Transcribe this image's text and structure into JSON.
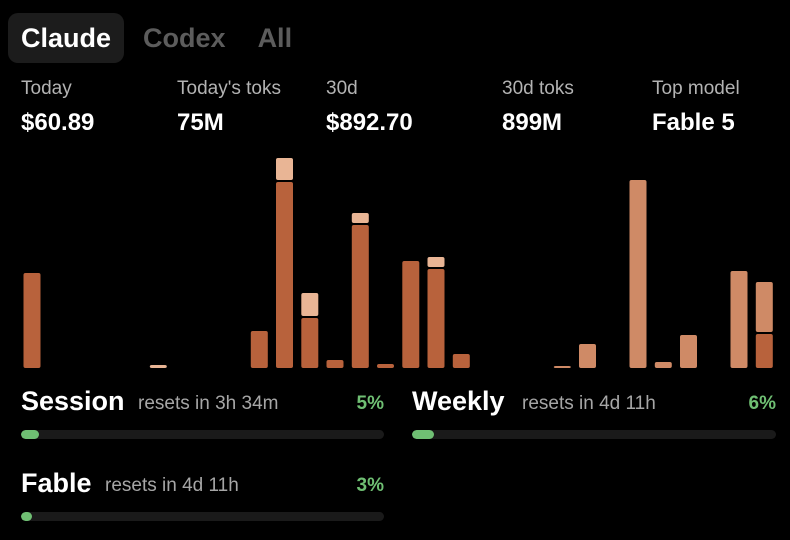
{
  "tabs": [
    {
      "label": "Claude",
      "active": true
    },
    {
      "label": "Codex",
      "active": false
    },
    {
      "label": "All",
      "active": false
    }
  ],
  "stats": [
    {
      "label": "Today",
      "value": "$60.89"
    },
    {
      "label": "Today's toks",
      "value": "75M"
    },
    {
      "label": "30d",
      "value": "$892.70"
    },
    {
      "label": "30d toks",
      "value": "899M"
    },
    {
      "label": "Top model",
      "value": "Fable 5"
    }
  ],
  "colors": {
    "bar_dark": "#b8623c",
    "bar_medium": "#cf8a66",
    "bar_light": "#e9b595",
    "progress": "#6fbf73"
  },
  "chart_data": {
    "type": "bar",
    "stacked": true,
    "x": [
      1,
      2,
      3,
      4,
      5,
      6,
      7,
      8,
      9,
      10,
      11,
      12,
      13,
      14,
      15,
      16,
      17,
      18,
      19,
      20,
      21,
      22,
      23,
      24,
      25,
      26,
      27,
      28,
      29,
      30
    ],
    "series": [
      {
        "color": "#b8623c",
        "values": [
          95,
          0,
          0,
          0,
          0,
          0,
          0,
          0,
          0,
          37,
          186,
          50,
          8,
          143,
          4,
          107,
          99,
          14,
          0,
          0,
          0,
          0,
          0,
          0,
          0,
          0,
          0,
          0,
          0,
          34
        ]
      },
      {
        "color": "#cf8a66",
        "values": [
          0,
          0,
          0,
          0,
          0,
          0,
          0,
          0,
          0,
          0,
          0,
          0,
          0,
          0,
          0,
          0,
          0,
          0,
          0,
          0,
          0,
          2,
          24,
          0,
          188,
          6,
          33,
          0,
          97,
          50
        ]
      },
      {
        "color": "#e9b595",
        "values": [
          0,
          0,
          0,
          0,
          0,
          3,
          0,
          0,
          0,
          0,
          22,
          23,
          0,
          10,
          0,
          0,
          10,
          0,
          0,
          0,
          0,
          0,
          0,
          0,
          0,
          0,
          0,
          0,
          0,
          0
        ]
      }
    ],
    "ylim": [
      0,
      210
    ],
    "grid": false,
    "legend": "none"
  },
  "usage": [
    {
      "name": "Session",
      "reset": "resets in 3h 34m",
      "percent_text": "5%",
      "percent": 5
    },
    {
      "name": "Weekly",
      "reset": "resets in 4d 11h",
      "percent_text": "6%",
      "percent": 6
    },
    {
      "name": "Fable",
      "reset": "resets in 4d 11h",
      "percent_text": "3%",
      "percent": 3
    }
  ]
}
